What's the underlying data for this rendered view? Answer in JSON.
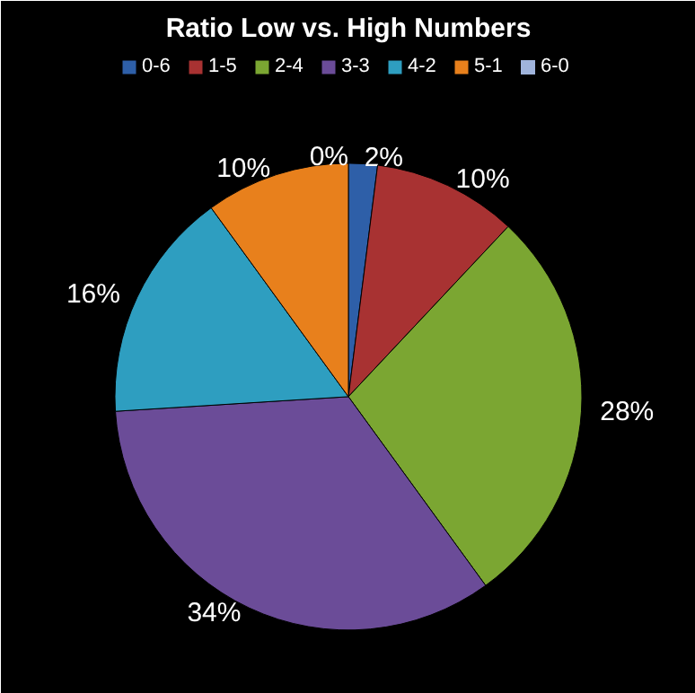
{
  "chart_data": {
    "type": "pie",
    "title": "Ratio Low vs. High Numbers",
    "legend": "top",
    "categories": [
      "0-6",
      "1-5",
      "2-4",
      "3-3",
      "4-2",
      "5-1",
      "6-0"
    ],
    "values": [
      2,
      10,
      28,
      34,
      16,
      10,
      0
    ],
    "value_labels": [
      "2%",
      "10%",
      "28%",
      "34%",
      "16%",
      "10%",
      "0%"
    ],
    "colors": [
      "#2e5fa8",
      "#a83232",
      "#7ba632",
      "#6b4c98",
      "#2e9ec0",
      "#e8801c",
      "#a0b4dc"
    ]
  }
}
